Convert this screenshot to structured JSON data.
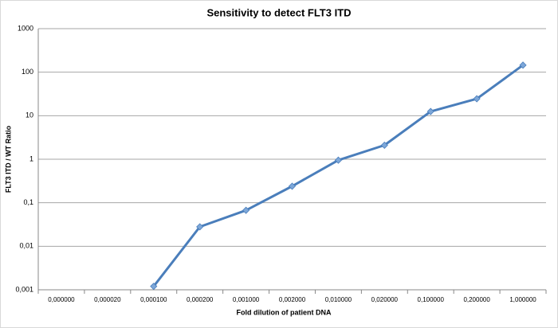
{
  "chart_data": {
    "type": "line",
    "title": "Sensitivity to detect FLT3 ITD",
    "x_label": "Fold dilution of patient DNA",
    "y_label": "FLT3 ITD / WT Ratio",
    "categories": [
      "0,000000",
      "0,000020",
      "0,000100",
      "0,000200",
      "0,001000",
      "0,002000",
      "0,010000",
      "0,020000",
      "0,100000",
      "0,200000",
      "1,000000"
    ],
    "series": [
      {
        "name": "FLT3 ITD / WT Ratio",
        "color": "#4a7ebb",
        "values": [
          null,
          null,
          0.0012,
          0.028,
          0.067,
          0.24,
          0.95,
          2.1,
          12.5,
          24.5,
          145
        ]
      }
    ],
    "y_scale": "log",
    "ylim": [
      0.001,
      1000
    ],
    "yticks": [
      {
        "value": 0.001,
        "label": "0,001"
      },
      {
        "value": 0.01,
        "label": "0,01"
      },
      {
        "value": 0.1,
        "label": "0,1"
      },
      1,
      10,
      100,
      1000
    ],
    "grid": true
  }
}
